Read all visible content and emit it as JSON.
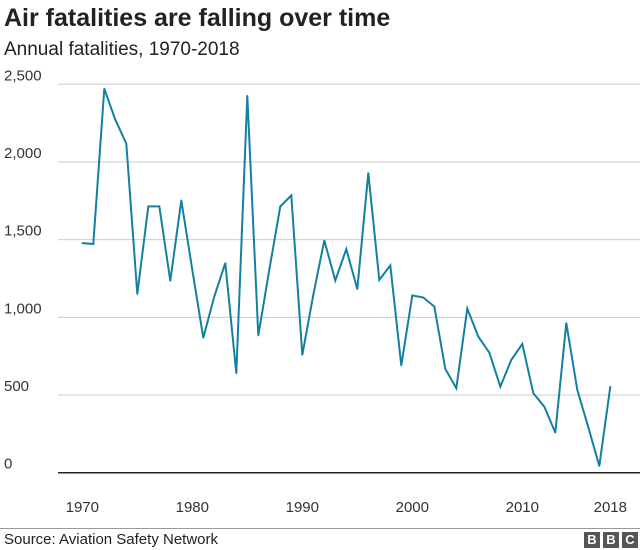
{
  "title": "Air fatalities are falling over time",
  "subtitle": "Annual fatalities, 1970-2018",
  "source": "Source: Aviation Safety Network",
  "logo": [
    "B",
    "B",
    "C"
  ],
  "chart_data": {
    "type": "line",
    "title": "Air fatalities are falling over time",
    "subtitle": "Annual fatalities, 1970-2018",
    "xlabel": "",
    "ylabel": "",
    "xlim": [
      1970,
      2018
    ],
    "ylim": [
      0,
      2500
    ],
    "grid": true,
    "line_color": "#1380a1",
    "y_ticks": [
      0,
      500,
      1000,
      1500,
      2000,
      2500
    ],
    "y_tick_labels": [
      "0",
      "500",
      "1,000",
      "1,500",
      "2,000",
      "2,500"
    ],
    "x_ticks": [
      1970,
      1980,
      1990,
      2000,
      2010,
      2018
    ],
    "x_tick_labels": [
      "1970",
      "1980",
      "1990",
      "2000",
      "2010",
      "2018"
    ],
    "x": [
      1970,
      1971,
      1972,
      1973,
      1974,
      1975,
      1976,
      1977,
      1978,
      1979,
      1980,
      1981,
      1982,
      1983,
      1984,
      1985,
      1986,
      1987,
      1988,
      1989,
      1990,
      1991,
      1992,
      1993,
      1994,
      1995,
      1996,
      1997,
      1998,
      1999,
      2000,
      2001,
      2002,
      2003,
      2004,
      2005,
      2006,
      2007,
      2008,
      2009,
      2010,
      2011,
      2012,
      2013,
      2014,
      2015,
      2016,
      2017,
      2018
    ],
    "values": [
      1478,
      1472,
      2472,
      2272,
      2118,
      1150,
      1714,
      1714,
      1235,
      1753,
      1306,
      868,
      1134,
      1349,
      640,
      2427,
      883,
      1306,
      1714,
      1785,
      758,
      1145,
      1495,
      1237,
      1439,
      1182,
      1929,
      1241,
      1334,
      690,
      1141,
      1128,
      1070,
      668,
      544,
      1057,
      876,
      773,
      554,
      726,
      829,
      512,
      425,
      258,
      963,
      533,
      293,
      43,
      554
    ]
  }
}
